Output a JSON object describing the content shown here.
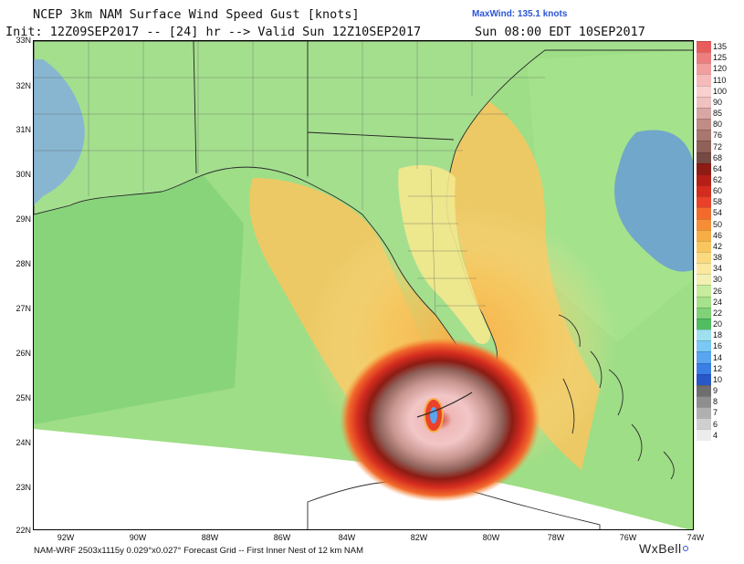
{
  "header": {
    "title": "NCEP 3km NAM Surface Wind Speed Gust [knots]",
    "init_line": "Init: 12Z09SEP2017 -- [24] hr --> Valid Sun 12Z10SEP2017",
    "valid_local": "Sun 08:00 EDT 10SEP2017",
    "max_wind": "MaxWind: 135.1 knots"
  },
  "map": {
    "lat_labels": [
      "33N",
      "32N",
      "31N",
      "30N",
      "29N",
      "28N",
      "27N",
      "26N",
      "25N",
      "24N",
      "23N",
      "22N"
    ],
    "lon_labels": [
      "92W",
      "90W",
      "88W",
      "86W",
      "84W",
      "82W",
      "80W",
      "78W",
      "76W",
      "74W"
    ],
    "land_outline_color": "#2b2b2b",
    "no_data_color": "#ffffff",
    "background_gust_color": "#9ede86"
  },
  "colorbar": {
    "labels": [
      "135",
      "125",
      "120",
      "110",
      "100",
      "90",
      "85",
      "80",
      "76",
      "72",
      "68",
      "64",
      "62",
      "60",
      "58",
      "54",
      "50",
      "46",
      "42",
      "38",
      "34",
      "30",
      "26",
      "24",
      "22",
      "20",
      "18",
      "16",
      "14",
      "12",
      "10",
      "9",
      "8",
      "7",
      "6",
      "4"
    ],
    "colors": [
      "#e85c5c",
      "#ee7e7e",
      "#f39e9e",
      "#f6baba",
      "#f8d0d0",
      "#efc1c1",
      "#d9a6a6",
      "#bf8c86",
      "#a87770",
      "#8e6159",
      "#744a44",
      "#8c1c14",
      "#b41f17",
      "#d42b1f",
      "#e9412a",
      "#f26a2c",
      "#f58e37",
      "#f7ad46",
      "#f9c65e",
      "#fbd97e",
      "#fbe89e",
      "#f2f0b3",
      "#c6ec9c",
      "#a6e28a",
      "#7fd277",
      "#4fbd60",
      "#9fe0ef",
      "#79c9f2",
      "#5aa5ef",
      "#3a7fe6",
      "#2857c8",
      "#6e6e6e",
      "#8e8e8e",
      "#b0b0b0",
      "#cfcfcf",
      "#ececec"
    ]
  },
  "footer": {
    "grid_info": "NAM-WRF 2503x1115y 0.029°x0.027° Forecast Grid -- First Inner Nest of 12 km NAM",
    "logo": "WxBell"
  }
}
